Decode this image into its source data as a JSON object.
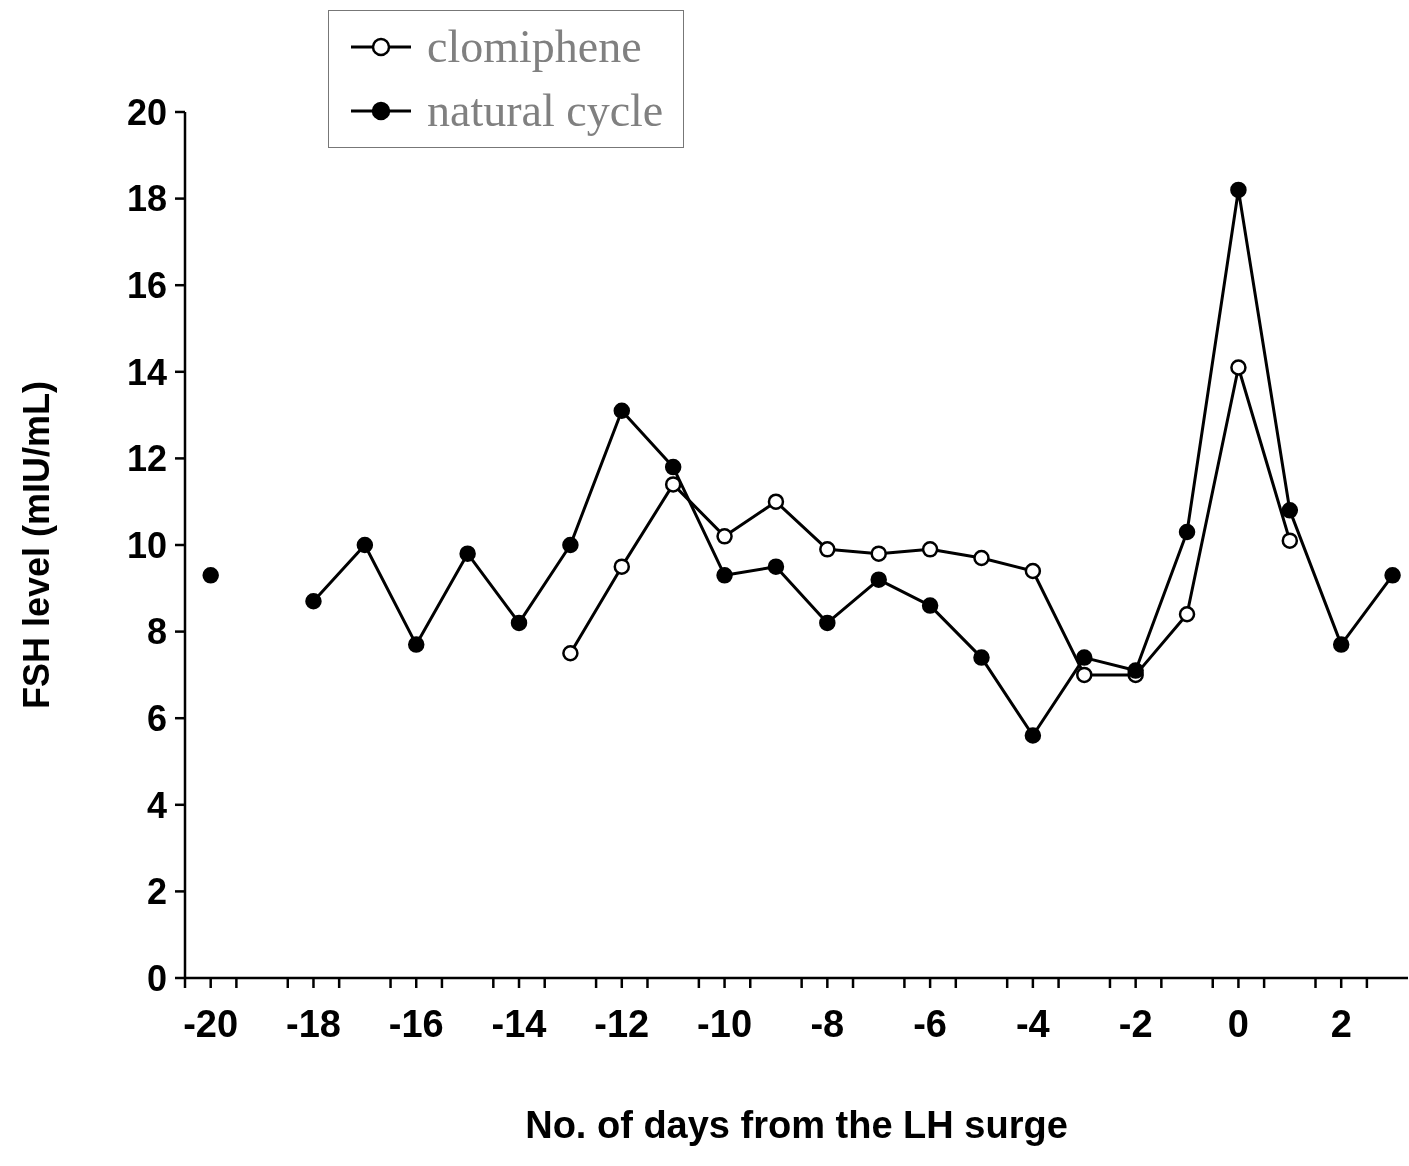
{
  "chart_data": {
    "type": "line",
    "xlabel": "No. of days from the LH surge",
    "ylabel": "FSH level (mIU/mL)",
    "xlim": [
      -20.5,
      3.3
    ],
    "xticks": [
      {
        "value": -20.5,
        "label": null
      },
      {
        "value": -20,
        "label": "-20"
      },
      {
        "value": -19.5,
        "label": null
      },
      {
        "value": -18.5,
        "label": null
      },
      {
        "value": -18,
        "label": "-18"
      },
      {
        "value": -17.5,
        "label": null
      },
      {
        "value": -16.5,
        "label": null
      },
      {
        "value": -16,
        "label": "-16"
      },
      {
        "value": -15.5,
        "label": null
      },
      {
        "value": -14.5,
        "label": null
      },
      {
        "value": -14,
        "label": "-14"
      },
      {
        "value": -13.5,
        "label": null
      },
      {
        "value": -12.5,
        "label": null
      },
      {
        "value": -12,
        "label": "-12"
      },
      {
        "value": -11.5,
        "label": null
      },
      {
        "value": -10.5,
        "label": null
      },
      {
        "value": -10,
        "label": "-10"
      },
      {
        "value": -9.5,
        "label": null
      },
      {
        "value": -8.5,
        "label": null
      },
      {
        "value": -8,
        "label": "-8"
      },
      {
        "value": -7.5,
        "label": null
      },
      {
        "value": -6.5,
        "label": null
      },
      {
        "value": -6,
        "label": "-6"
      },
      {
        "value": -5.5,
        "label": null
      },
      {
        "value": -4.5,
        "label": null
      },
      {
        "value": -4,
        "label": "-4"
      },
      {
        "value": -3.5,
        "label": null
      },
      {
        "value": -2.5,
        "label": null
      },
      {
        "value": -2,
        "label": "-2"
      },
      {
        "value": -1.5,
        "label": null
      },
      {
        "value": -0.5,
        "label": null
      },
      {
        "value": 0,
        "label": "0"
      },
      {
        "value": 0.5,
        "label": null
      },
      {
        "value": 1.5,
        "label": null
      },
      {
        "value": 2,
        "label": "2"
      },
      {
        "value": 2.5,
        "label": null
      }
    ],
    "ylim": [
      0,
      20
    ],
    "yticks": [
      0,
      2,
      4,
      6,
      8,
      10,
      12,
      14,
      16,
      18,
      20
    ],
    "grid": false,
    "legend": "top left",
    "marker": "circle",
    "line_style": "solid",
    "series": [
      {
        "name": "clomiphene",
        "color": "#ffffff",
        "x": [
          -13,
          -12,
          -11,
          -10,
          -9,
          -8,
          -7,
          -6,
          -5,
          -4,
          -3,
          -2,
          -1,
          0,
          1
        ],
        "values": [
          7.5,
          9.5,
          11.4,
          10.2,
          11.0,
          9.9,
          9.8,
          9.9,
          9.7,
          9.4,
          7.0,
          7.0,
          8.4,
          14.1,
          10.1
        ]
      },
      {
        "name": "natural cycle",
        "color": "#000000",
        "x": [
          -20,
          -19,
          -18,
          -17,
          -16,
          -15,
          -14,
          -13,
          -12,
          -11,
          -10,
          -9,
          -8,
          -7,
          -6,
          -5,
          -4,
          -3,
          -2,
          -1,
          0,
          1,
          2,
          3
        ],
        "values": [
          9.3,
          null,
          8.7,
          10.0,
          7.7,
          9.8,
          8.2,
          10.0,
          13.1,
          11.8,
          9.3,
          9.5,
          8.2,
          9.2,
          8.6,
          7.4,
          5.6,
          7.4,
          7.1,
          10.3,
          18.2,
          10.8,
          7.7,
          9.3
        ]
      }
    ]
  }
}
